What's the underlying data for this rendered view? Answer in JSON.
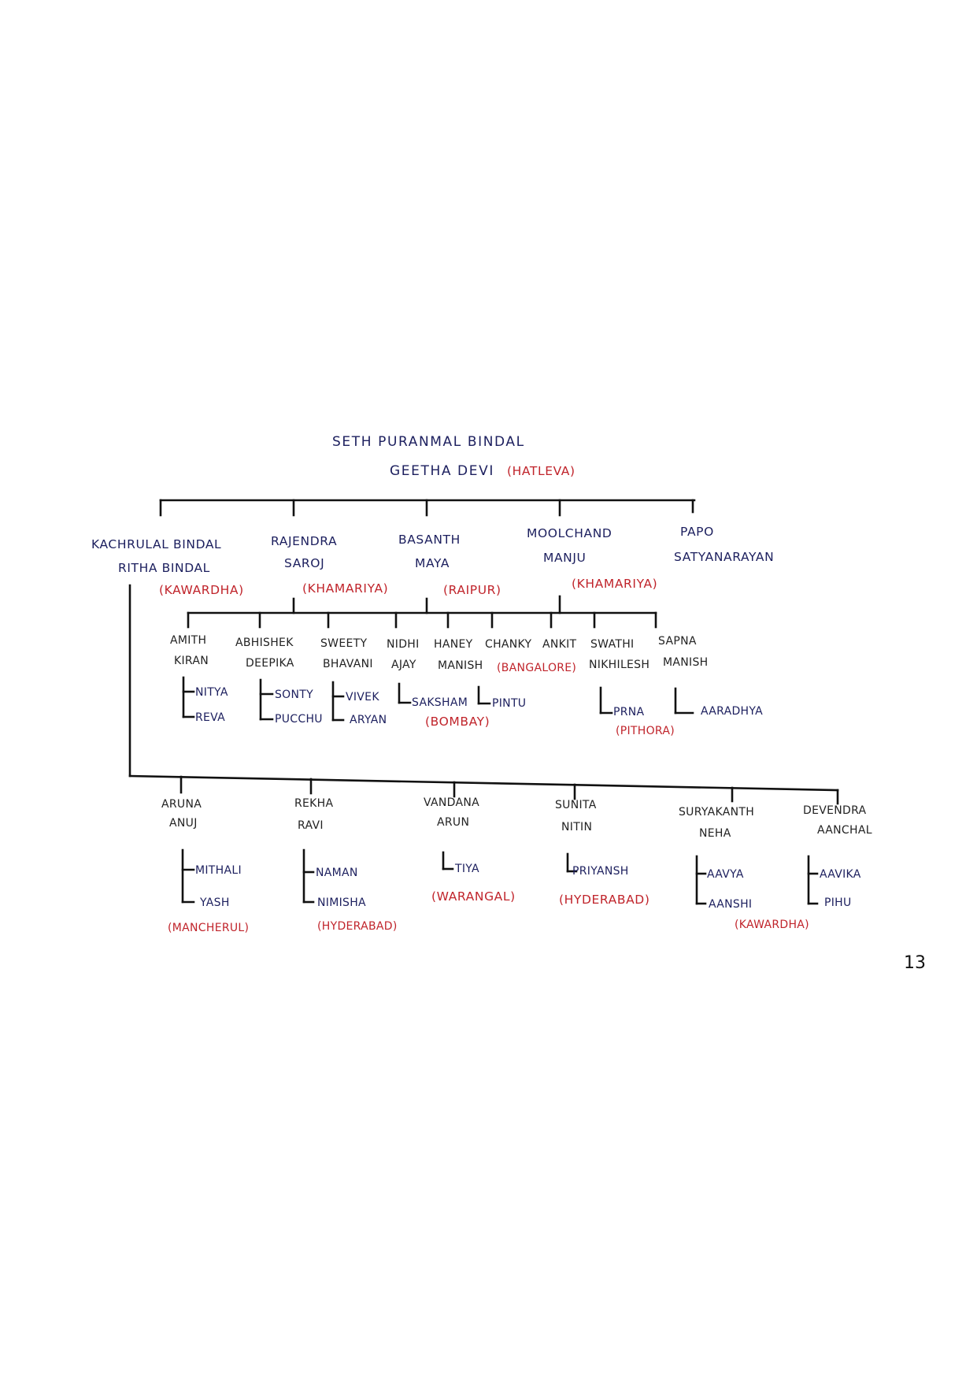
{
  "colors": {
    "name_ink": "#1c1f5e",
    "place_ink": "#c0242b",
    "line_ink": "#111111"
  },
  "root": {
    "husband": "SETH PURANMAL BINDAL",
    "wife": "GEETHA DEVI",
    "place": "(HATLEVA)"
  },
  "generation_2": [
    {
      "husband": "KACHRULAL BINDAL",
      "wife": "RITHA BINDAL",
      "place": "(KAWARDHA)"
    },
    {
      "husband": "RAJENDRA",
      "wife": "SAROJ",
      "place": "(KHAMARIYA)"
    },
    {
      "husband": "BASANTH",
      "wife": "MAYA",
      "place": "(RAIPUR)"
    },
    {
      "husband": "MOOLCHAND",
      "wife": "MANJU",
      "place": "(KHAMARIYA)"
    },
    {
      "husband": "PAPO",
      "wife": "SATYANARAYAN"
    }
  ],
  "generation_3_middle": [
    {
      "line1": "AMITH",
      "line2": "KIRAN",
      "children": [
        "NITYA",
        "REVA"
      ]
    },
    {
      "line1": "ABHISHEK",
      "line2": "DEEPIKA",
      "children": [
        "SONTY",
        "PUCCHU"
      ]
    },
    {
      "line1": "SWEETY",
      "line2": "BHAVANI",
      "children": [
        "VIVEK",
        "ARYAN"
      ]
    },
    {
      "line1": "NIDHI",
      "line2": "AJAY",
      "children": [
        "SAKSHAM"
      ]
    },
    {
      "line1": "HANEY",
      "line2": "MANISH",
      "children": [
        "PINTU"
      ]
    },
    {
      "line1": "CHANKY"
    },
    {
      "line1": "ANKIT"
    },
    {
      "line1": "SWATHI",
      "line2": "NIKHILESH",
      "children": [
        "PRNA"
      ]
    },
    {
      "line1": "SAPNA",
      "line2": "MANISH",
      "children": [
        "AARADHYA"
      ]
    }
  ],
  "middle_places": {
    "bangalore": "(BANGALORE)",
    "bombay": "(BOMBAY)",
    "pithora": "(PITHORA)"
  },
  "generation_3_bottom": [
    {
      "line1": "ARUNA",
      "line2": "ANUJ",
      "children": [
        "MITHALI",
        "YASH"
      ],
      "place": "(MANCHERUL)"
    },
    {
      "line1": "REKHA",
      "line2": "RAVI",
      "children": [
        "NAMAN",
        "NIMISHA"
      ],
      "place": "(HYDERABAD)"
    },
    {
      "line1": "VANDANA",
      "line2": "ARUN",
      "children": [
        "TIYA"
      ],
      "place": "(WARANGAL)"
    },
    {
      "line1": "SUNITA",
      "line2": "NITIN",
      "children": [
        "PRIYANSH"
      ],
      "place": "(HYDERABAD)"
    },
    {
      "line1": "SURYAKANTH",
      "line2": "NEHA",
      "children": [
        "AAVYA",
        "AANSHI"
      ]
    },
    {
      "line1": "DEVENDRA",
      "line2": "AANCHAL",
      "children": [
        "AAVIKA",
        "PIHU"
      ]
    }
  ],
  "bottom_shared_place": "(KAWARDHA)",
  "page_number": "13"
}
